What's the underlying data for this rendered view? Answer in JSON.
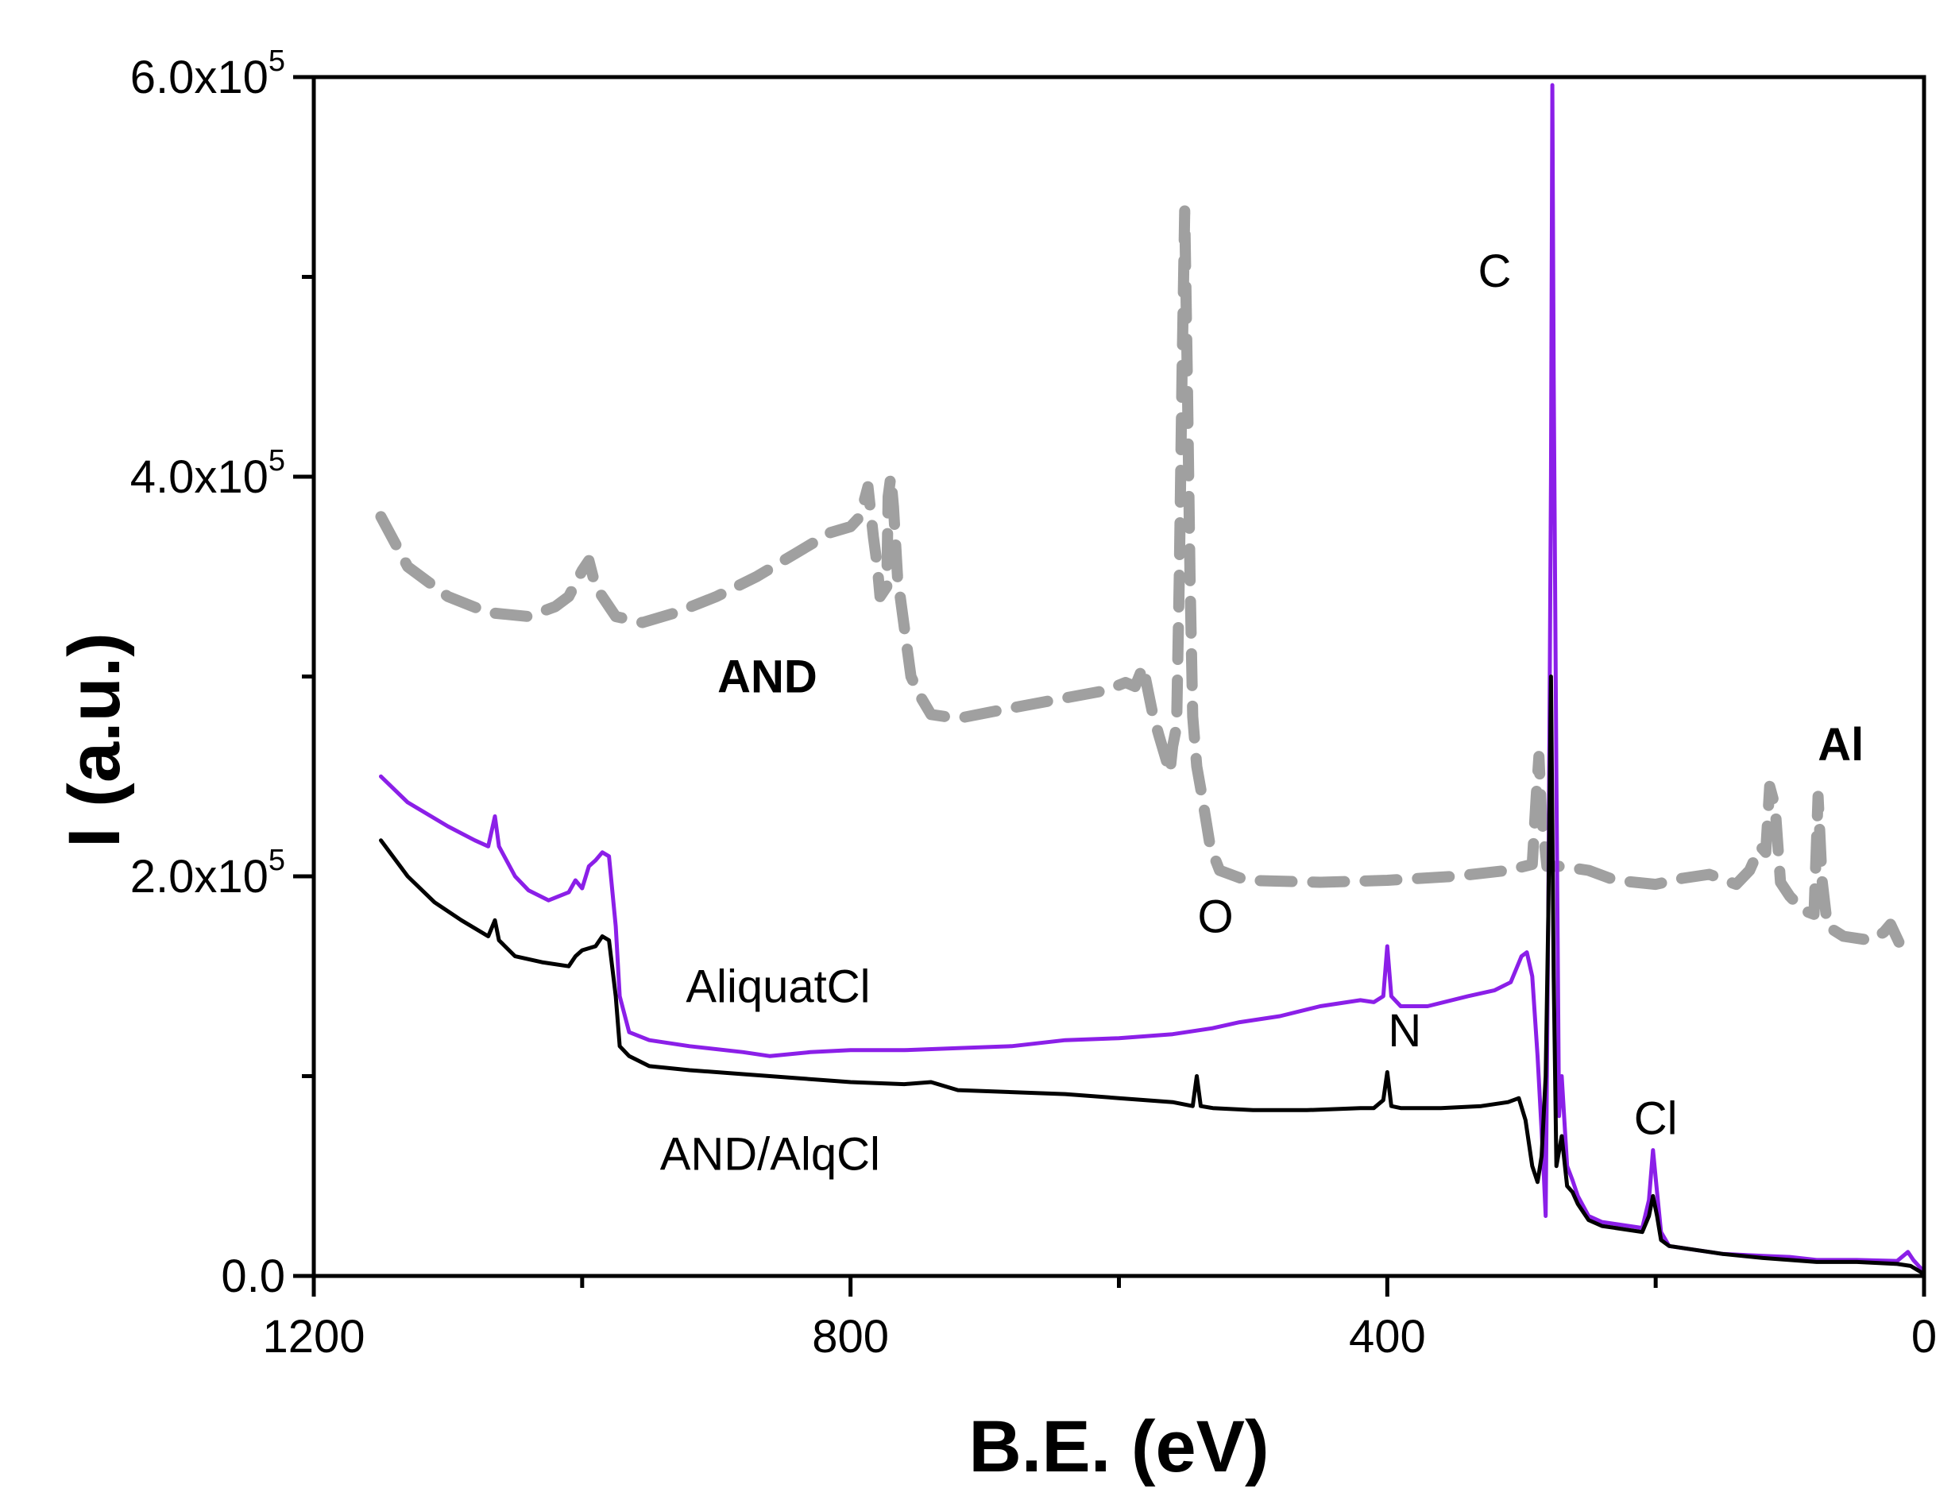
{
  "chart_data": {
    "type": "line",
    "title": "",
    "xlabel": "B.E. (eV)",
    "ylabel": "I (a.u.)",
    "xlim": [
      1200,
      0
    ],
    "ylim": [
      0,
      600000
    ],
    "x_reversed": true,
    "grid": false,
    "x_ticks": [
      1200,
      800,
      400,
      0
    ],
    "x_tick_labels": [
      "1200",
      "800",
      "400",
      "0"
    ],
    "y_ticks": [
      0,
      200000,
      400000,
      600000
    ],
    "y_tick_labels": [
      {
        "mantissa": "0.0",
        "exp": ""
      },
      {
        "mantissa": "2.0x10",
        "exp": "5"
      },
      {
        "mantissa": "4.0x10",
        "exp": "5"
      },
      {
        "mantissa": "6.0x10",
        "exp": "5"
      }
    ],
    "series": [
      {
        "name": "AND",
        "color": "#a0a0a0",
        "style": "dashed",
        "points": [
          [
            1150,
            380000
          ],
          [
            1130,
            355000
          ],
          [
            1100,
            340000
          ],
          [
            1070,
            332000
          ],
          [
            1040,
            330000
          ],
          [
            1020,
            335000
          ],
          [
            1010,
            340000
          ],
          [
            1000,
            353000
          ],
          [
            995,
            358000
          ],
          [
            990,
            345000
          ],
          [
            975,
            330000
          ],
          [
            955,
            327000
          ],
          [
            930,
            332000
          ],
          [
            900,
            340000
          ],
          [
            870,
            350000
          ],
          [
            840,
            362000
          ],
          [
            815,
            372000
          ],
          [
            800,
            375000
          ],
          [
            793,
            380000
          ],
          [
            787,
            395000
          ],
          [
            783,
            370000
          ],
          [
            780,
            355000
          ],
          [
            778,
            340000
          ],
          [
            773,
            345000
          ],
          [
            772,
            390000
          ],
          [
            770,
            400000
          ],
          [
            768,
            385000
          ],
          [
            765,
            350000
          ],
          [
            760,
            325000
          ],
          [
            755,
            300000
          ],
          [
            748,
            290000
          ],
          [
            740,
            281000
          ],
          [
            720,
            279000
          ],
          [
            690,
            283000
          ],
          [
            650,
            288000
          ],
          [
            610,
            293000
          ],
          [
            595,
            297000
          ],
          [
            588,
            295000
          ],
          [
            582,
            305000
          ],
          [
            575,
            282000
          ],
          [
            570,
            270000
          ],
          [
            562,
            252000
          ],
          [
            560,
            265000
          ],
          [
            557,
            275000
          ],
          [
            555,
            350000
          ],
          [
            553,
            450000
          ],
          [
            551,
            533000
          ],
          [
            549,
            450000
          ],
          [
            547,
            350000
          ],
          [
            545,
            280000
          ],
          [
            542,
            255000
          ],
          [
            538,
            240000
          ],
          [
            532,
            215000
          ],
          [
            525,
            203000
          ],
          [
            505,
            198000
          ],
          [
            450,
            197000
          ],
          [
            400,
            198000
          ],
          [
            350,
            200000
          ],
          [
            310,
            203000
          ],
          [
            292,
            206000
          ],
          [
            289,
            240000
          ],
          [
            287,
            260000
          ],
          [
            285,
            230000
          ],
          [
            281,
            205000
          ],
          [
            270,
            205000
          ],
          [
            250,
            203000
          ],
          [
            230,
            198000
          ],
          [
            200,
            196000
          ],
          [
            180,
            199000
          ],
          [
            160,
            201000
          ],
          [
            140,
            196000
          ],
          [
            130,
            203000
          ],
          [
            122,
            215000
          ],
          [
            118,
            212000
          ],
          [
            115,
            245000
          ],
          [
            111,
            235000
          ],
          [
            107,
            197000
          ],
          [
            100,
            190000
          ],
          [
            90,
            183000
          ],
          [
            82,
            181000
          ],
          [
            79,
            240000
          ],
          [
            76,
            198000
          ],
          [
            72,
            175000
          ],
          [
            60,
            170000
          ],
          [
            40,
            168000
          ],
          [
            30,
            172000
          ],
          [
            25,
            176000
          ],
          [
            18,
            166000
          ],
          [
            10,
            161000
          ]
        ]
      },
      {
        "name": "AliquatCl",
        "color": "#8b1fe8",
        "style": "solid",
        "points": [
          [
            1150,
            250000
          ],
          [
            1130,
            237000
          ],
          [
            1100,
            225000
          ],
          [
            1080,
            218000
          ],
          [
            1070,
            215000
          ],
          [
            1065,
            230000
          ],
          [
            1062,
            215000
          ],
          [
            1050,
            200000
          ],
          [
            1040,
            193000
          ],
          [
            1025,
            188000
          ],
          [
            1010,
            192000
          ],
          [
            1005,
            198000
          ],
          [
            1000,
            194000
          ],
          [
            995,
            205000
          ],
          [
            990,
            208000
          ],
          [
            985,
            212000
          ],
          [
            980,
            210000
          ],
          [
            975,
            175000
          ],
          [
            972,
            140000
          ],
          [
            965,
            122000
          ],
          [
            950,
            118000
          ],
          [
            920,
            115000
          ],
          [
            880,
            112000
          ],
          [
            860,
            110000
          ],
          [
            830,
            112000
          ],
          [
            800,
            113000
          ],
          [
            760,
            113000
          ],
          [
            720,
            114000
          ],
          [
            680,
            115000
          ],
          [
            640,
            118000
          ],
          [
            600,
            119000
          ],
          [
            560,
            121000
          ],
          [
            530,
            124000
          ],
          [
            510,
            127000
          ],
          [
            480,
            130000
          ],
          [
            450,
            135000
          ],
          [
            420,
            138000
          ],
          [
            410,
            137000
          ],
          [
            403,
            140000
          ],
          [
            400,
            165000
          ],
          [
            397,
            140000
          ],
          [
            390,
            135000
          ],
          [
            370,
            135000
          ],
          [
            340,
            140000
          ],
          [
            320,
            143000
          ],
          [
            308,
            147000
          ],
          [
            300,
            160000
          ],
          [
            296,
            162000
          ],
          [
            292,
            150000
          ],
          [
            288,
            110000
          ],
          [
            284,
            60000
          ],
          [
            282,
            30000
          ],
          [
            280,
            180000
          ],
          [
            278,
            400000
          ],
          [
            277,
            596000
          ],
          [
            276,
            450000
          ],
          [
            274,
            250000
          ],
          [
            272,
            80000
          ],
          [
            270,
            100000
          ],
          [
            266,
            55000
          ],
          [
            262,
            48000
          ],
          [
            258,
            40000
          ],
          [
            250,
            30000
          ],
          [
            240,
            27000
          ],
          [
            230,
            26000
          ],
          [
            220,
            25000
          ],
          [
            210,
            24000
          ],
          [
            205,
            38000
          ],
          [
            202,
            63000
          ],
          [
            199,
            42000
          ],
          [
            196,
            22000
          ],
          [
            190,
            15000
          ],
          [
            170,
            13000
          ],
          [
            150,
            11000
          ],
          [
            120,
            10000
          ],
          [
            100,
            9500
          ],
          [
            80,
            8000
          ],
          [
            50,
            8000
          ],
          [
            20,
            7500
          ],
          [
            12,
            12000
          ],
          [
            8,
            8000
          ],
          [
            0,
            2000
          ]
        ]
      },
      {
        "name": "AND/AlqCl",
        "color": "#000000",
        "style": "solid",
        "points": [
          [
            1150,
            218000
          ],
          [
            1130,
            200000
          ],
          [
            1110,
            187000
          ],
          [
            1090,
            178000
          ],
          [
            1070,
            170000
          ],
          [
            1065,
            178000
          ],
          [
            1062,
            168000
          ],
          [
            1050,
            160000
          ],
          [
            1030,
            157000
          ],
          [
            1010,
            155000
          ],
          [
            1005,
            160000
          ],
          [
            1000,
            163000
          ],
          [
            990,
            165000
          ],
          [
            985,
            170000
          ],
          [
            980,
            168000
          ],
          [
            975,
            140000
          ],
          [
            972,
            115000
          ],
          [
            965,
            110000
          ],
          [
            950,
            105000
          ],
          [
            920,
            103000
          ],
          [
            880,
            101000
          ],
          [
            840,
            99000
          ],
          [
            800,
            97000
          ],
          [
            760,
            96000
          ],
          [
            740,
            97000
          ],
          [
            720,
            93000
          ],
          [
            680,
            92000
          ],
          [
            640,
            91000
          ],
          [
            600,
            89000
          ],
          [
            560,
            87000
          ],
          [
            545,
            85000
          ],
          [
            542,
            100000
          ],
          [
            539,
            85000
          ],
          [
            530,
            84000
          ],
          [
            500,
            83000
          ],
          [
            460,
            83000
          ],
          [
            420,
            84000
          ],
          [
            410,
            84000
          ],
          [
            403,
            88000
          ],
          [
            400,
            102000
          ],
          [
            397,
            85000
          ],
          [
            390,
            84000
          ],
          [
            360,
            84000
          ],
          [
            330,
            85000
          ],
          [
            310,
            87000
          ],
          [
            302,
            89000
          ],
          [
            297,
            78000
          ],
          [
            292,
            55000
          ],
          [
            288,
            47000
          ],
          [
            285,
            60000
          ],
          [
            282,
            100000
          ],
          [
            280,
            180000
          ],
          [
            278,
            300000
          ],
          [
            276,
            150000
          ],
          [
            274,
            55000
          ],
          [
            270,
            70000
          ],
          [
            266,
            45000
          ],
          [
            262,
            42000
          ],
          [
            258,
            36000
          ],
          [
            250,
            28000
          ],
          [
            240,
            25000
          ],
          [
            230,
            24000
          ],
          [
            220,
            23000
          ],
          [
            210,
            22000
          ],
          [
            205,
            30000
          ],
          [
            202,
            40000
          ],
          [
            199,
            30000
          ],
          [
            196,
            18000
          ],
          [
            190,
            15000
          ],
          [
            170,
            13000
          ],
          [
            150,
            11000
          ],
          [
            120,
            9000
          ],
          [
            100,
            8000
          ],
          [
            80,
            7000
          ],
          [
            50,
            7000
          ],
          [
            20,
            6000
          ],
          [
            10,
            5000
          ],
          [
            0,
            1000
          ]
        ]
      }
    ],
    "annotations": [
      {
        "text": "C",
        "x": 320,
        "y": 495000,
        "color": "#000000",
        "bold": false
      },
      {
        "text": "O",
        "x": 528,
        "y": 172000,
        "color": "#000000",
        "bold": false
      },
      {
        "text": "N",
        "x": 387,
        "y": 115000,
        "color": "#000000",
        "bold": false
      },
      {
        "text": "Cl",
        "x": 200,
        "y": 71000,
        "color": "#000000",
        "bold": false
      },
      {
        "text": "AND",
        "x": 862,
        "y": 292000,
        "color": "#a0a0a0",
        "bold": true
      },
      {
        "text": "Al",
        "x": 62,
        "y": 258000,
        "color": "#a0a0a0",
        "bold": true
      },
      {
        "text": "AliquatCl",
        "x": 854,
        "y": 137000,
        "color": "#8b1fe8",
        "bold": false
      },
      {
        "text": "AND/AlqCl",
        "x": 860,
        "y": 53000,
        "color": "#000000",
        "bold": false
      }
    ]
  }
}
